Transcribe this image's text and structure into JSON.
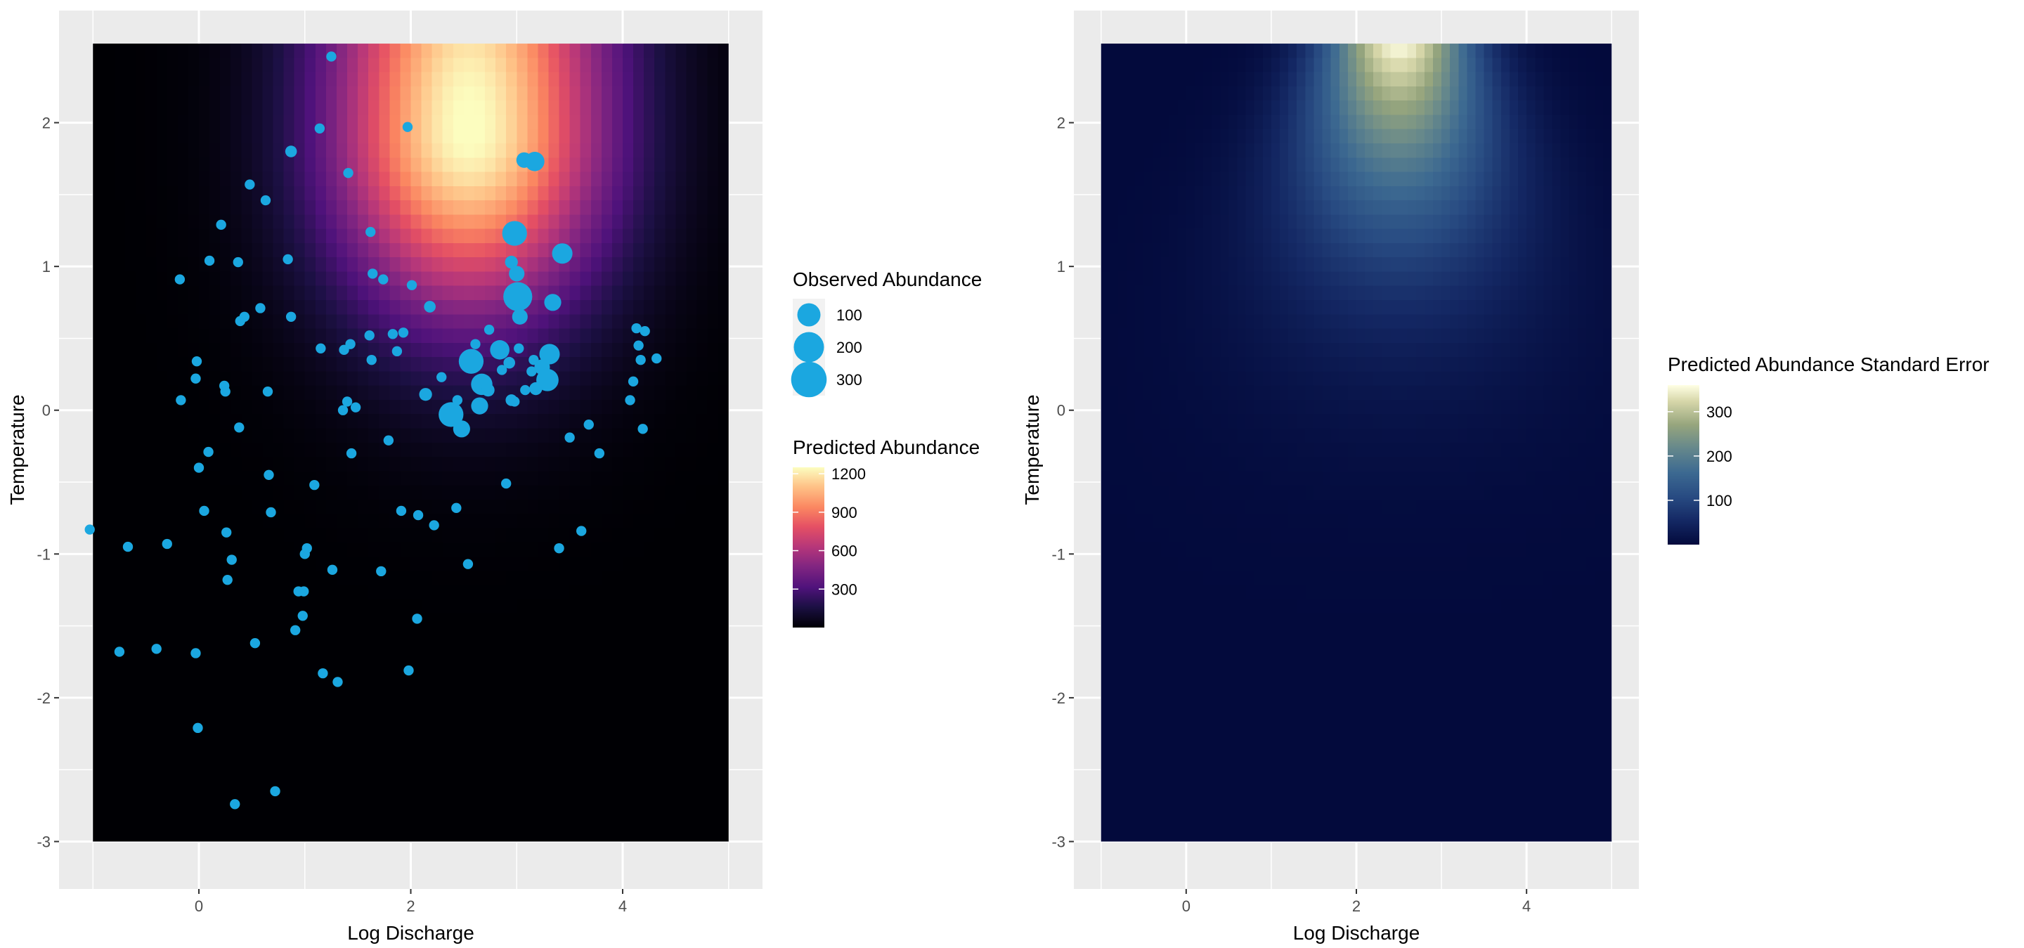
{
  "chart_data": [
    {
      "type": "heatmap",
      "title": "",
      "xlabel": "Log Discharge",
      "ylabel": "Temperature",
      "xlim": [
        -1.32,
        5.32
      ],
      "ylim": [
        -3.33,
        2.78
      ],
      "tile_extent": {
        "x": [
          -1,
          5
        ],
        "y": [
          -3,
          2.55
        ]
      },
      "x_ticks": [
        0,
        2,
        4
      ],
      "y_ticks": [
        -3,
        -2,
        -1,
        0,
        1,
        2
      ],
      "grid": true,
      "palette": "magma",
      "fill_legend": {
        "title": "Predicted Abundance",
        "breaks": [
          300,
          600,
          900,
          1200
        ],
        "range": [
          0,
          1250
        ]
      },
      "surface_model": {
        "peak": 1260,
        "center_x": 2.55,
        "center_y": 1.95,
        "sd_x": 0.9,
        "sd_y": 0.9,
        "sd_y_above": 1.6
      },
      "points_series": {
        "name": "Observed Abundance",
        "color": "#1BA7E0",
        "size_legend": {
          "title": "Observed Abundance",
          "breaks": [
            100,
            200,
            300
          ]
        },
        "points": [
          {
            "x": -1.03,
            "y": -0.83,
            "v": 5
          },
          {
            "x": -0.75,
            "y": -1.68,
            "v": 5
          },
          {
            "x": -0.67,
            "y": -0.95,
            "v": 5
          },
          {
            "x": -0.4,
            "y": -1.66,
            "v": 5
          },
          {
            "x": -0.3,
            "y": -0.93,
            "v": 5
          },
          {
            "x": -0.18,
            "y": 0.91,
            "v": 5
          },
          {
            "x": -0.17,
            "y": 0.07,
            "v": 5
          },
          {
            "x": -0.03,
            "y": 0.22,
            "v": 5
          },
          {
            "x": -0.02,
            "y": 0.34,
            "v": 5
          },
          {
            "x": -0.03,
            "y": -1.69,
            "v": 5
          },
          {
            "x": -0.01,
            "y": -2.21,
            "v": 5
          },
          {
            "x": 0.0,
            "y": -0.4,
            "v": 5
          },
          {
            "x": 0.05,
            "y": -0.7,
            "v": 5
          },
          {
            "x": 0.09,
            "y": -0.29,
            "v": 5
          },
          {
            "x": 0.1,
            "y": 1.04,
            "v": 5
          },
          {
            "x": 0.21,
            "y": 1.29,
            "v": 5
          },
          {
            "x": 0.24,
            "y": 0.17,
            "v": 5
          },
          {
            "x": 0.25,
            "y": 0.13,
            "v": 5
          },
          {
            "x": 0.26,
            "y": -0.85,
            "v": 5
          },
          {
            "x": 0.27,
            "y": -1.18,
            "v": 5
          },
          {
            "x": 0.31,
            "y": -1.04,
            "v": 5
          },
          {
            "x": 0.34,
            "y": -2.74,
            "v": 5
          },
          {
            "x": 0.37,
            "y": 1.03,
            "v": 5
          },
          {
            "x": 0.38,
            "y": -0.12,
            "v": 5
          },
          {
            "x": 0.39,
            "y": 0.62,
            "v": 5
          },
          {
            "x": 0.43,
            "y": 0.65,
            "v": 5
          },
          {
            "x": 0.48,
            "y": 1.57,
            "v": 5
          },
          {
            "x": 0.53,
            "y": -1.62,
            "v": 5
          },
          {
            "x": 0.58,
            "y": 0.71,
            "v": 5
          },
          {
            "x": 0.63,
            "y": 1.46,
            "v": 5
          },
          {
            "x": 0.65,
            "y": 0.13,
            "v": 5
          },
          {
            "x": 0.66,
            "y": -0.45,
            "v": 5
          },
          {
            "x": 0.68,
            "y": -0.71,
            "v": 5
          },
          {
            "x": 0.72,
            "y": -2.65,
            "v": 5
          },
          {
            "x": 0.84,
            "y": 1.05,
            "v": 5
          },
          {
            "x": 0.87,
            "y": 0.65,
            "v": 5
          },
          {
            "x": 0.87,
            "y": 1.8,
            "v": 10
          },
          {
            "x": 0.91,
            "y": -1.53,
            "v": 5
          },
          {
            "x": 0.94,
            "y": -1.26,
            "v": 5
          },
          {
            "x": 0.98,
            "y": -1.43,
            "v": 5
          },
          {
            "x": 0.99,
            "y": -1.26,
            "v": 5
          },
          {
            "x": 1.0,
            "y": -1.0,
            "v": 5
          },
          {
            "x": 1.02,
            "y": -0.96,
            "v": 5
          },
          {
            "x": 1.09,
            "y": -0.52,
            "v": 5
          },
          {
            "x": 1.14,
            "y": 1.96,
            "v": 5
          },
          {
            "x": 1.15,
            "y": 0.43,
            "v": 5
          },
          {
            "x": 1.17,
            "y": -1.83,
            "v": 5
          },
          {
            "x": 1.25,
            "y": 2.46,
            "v": 5
          },
          {
            "x": 1.26,
            "y": -1.11,
            "v": 5
          },
          {
            "x": 1.31,
            "y": -1.89,
            "v": 5
          },
          {
            "x": 1.36,
            "y": 0.0,
            "v": 5
          },
          {
            "x": 1.37,
            "y": 0.42,
            "v": 5
          },
          {
            "x": 1.4,
            "y": 0.06,
            "v": 5
          },
          {
            "x": 1.41,
            "y": 1.65,
            "v": 5
          },
          {
            "x": 1.43,
            "y": 0.46,
            "v": 5
          },
          {
            "x": 1.44,
            "y": -0.3,
            "v": 5
          },
          {
            "x": 1.48,
            "y": 0.02,
            "v": 5
          },
          {
            "x": 1.61,
            "y": 0.52,
            "v": 5
          },
          {
            "x": 1.62,
            "y": 1.24,
            "v": 5
          },
          {
            "x": 1.63,
            "y": 0.35,
            "v": 5
          },
          {
            "x": 1.64,
            "y": 0.95,
            "v": 5
          },
          {
            "x": 1.72,
            "y": -1.12,
            "v": 5
          },
          {
            "x": 1.74,
            "y": 0.91,
            "v": 5
          },
          {
            "x": 1.79,
            "y": -0.21,
            "v": 5
          },
          {
            "x": 1.83,
            "y": 0.53,
            "v": 5
          },
          {
            "x": 1.87,
            "y": 0.41,
            "v": 5
          },
          {
            "x": 1.91,
            "y": -0.7,
            "v": 5
          },
          {
            "x": 1.93,
            "y": 0.54,
            "v": 5
          },
          {
            "x": 1.97,
            "y": 1.97,
            "v": 5
          },
          {
            "x": 1.98,
            "y": -1.81,
            "v": 5
          },
          {
            "x": 2.01,
            "y": 0.87,
            "v": 5
          },
          {
            "x": 2.06,
            "y": -1.45,
            "v": 5
          },
          {
            "x": 2.07,
            "y": -0.73,
            "v": 5
          },
          {
            "x": 2.14,
            "y": 0.11,
            "v": 15
          },
          {
            "x": 2.18,
            "y": 0.72,
            "v": 10
          },
          {
            "x": 2.22,
            "y": -0.8,
            "v": 5
          },
          {
            "x": 2.29,
            "y": 0.23,
            "v": 5
          },
          {
            "x": 2.38,
            "y": -0.03,
            "v": 120
          },
          {
            "x": 2.43,
            "y": -0.68,
            "v": 5
          },
          {
            "x": 2.44,
            "y": 0.07,
            "v": 5
          },
          {
            "x": 2.48,
            "y": -0.13,
            "v": 40
          },
          {
            "x": 2.54,
            "y": -1.07,
            "v": 5
          },
          {
            "x": 2.57,
            "y": 0.34,
            "v": 120
          },
          {
            "x": 2.61,
            "y": 0.46,
            "v": 5
          },
          {
            "x": 2.65,
            "y": 0.03,
            "v": 40
          },
          {
            "x": 2.67,
            "y": 0.18,
            "v": 80
          },
          {
            "x": 2.73,
            "y": 0.14,
            "v": 15
          },
          {
            "x": 2.74,
            "y": 0.56,
            "v": 5
          },
          {
            "x": 2.84,
            "y": 0.42,
            "v": 60
          },
          {
            "x": 2.86,
            "y": 0.28,
            "v": 5
          },
          {
            "x": 2.9,
            "y": -0.51,
            "v": 5
          },
          {
            "x": 2.93,
            "y": 0.33,
            "v": 10
          },
          {
            "x": 2.95,
            "y": 1.03,
            "v": 15
          },
          {
            "x": 2.95,
            "y": 0.07,
            "v": 10
          },
          {
            "x": 2.98,
            "y": 0.06,
            "v": 5
          },
          {
            "x": 2.98,
            "y": 1.23,
            "v": 120
          },
          {
            "x": 3.0,
            "y": 0.95,
            "v": 30
          },
          {
            "x": 3.01,
            "y": 0.79,
            "v": 180
          },
          {
            "x": 3.02,
            "y": 0.43,
            "v": 5
          },
          {
            "x": 3.03,
            "y": 0.65,
            "v": 30
          },
          {
            "x": 3.07,
            "y": 1.74,
            "v": 30
          },
          {
            "x": 3.08,
            "y": 0.14,
            "v": 5
          },
          {
            "x": 3.14,
            "y": 0.27,
            "v": 5
          },
          {
            "x": 3.16,
            "y": 0.35,
            "v": 5
          },
          {
            "x": 3.17,
            "y": 1.73,
            "v": 60
          },
          {
            "x": 3.18,
            "y": 0.15,
            "v": 15
          },
          {
            "x": 3.24,
            "y": 0.3,
            "v": 30
          },
          {
            "x": 3.25,
            "y": 0.2,
            "v": 5
          },
          {
            "x": 3.29,
            "y": 0.21,
            "v": 90
          },
          {
            "x": 3.31,
            "y": 0.39,
            "v": 70
          },
          {
            "x": 3.34,
            "y": 0.75,
            "v": 40
          },
          {
            "x": 3.4,
            "y": -0.96,
            "v": 5
          },
          {
            "x": 3.43,
            "y": 1.09,
            "v": 70
          },
          {
            "x": 3.5,
            "y": -0.19,
            "v": 5
          },
          {
            "x": 3.61,
            "y": -0.84,
            "v": 5
          },
          {
            "x": 3.68,
            "y": -0.1,
            "v": 5
          },
          {
            "x": 3.78,
            "y": -0.3,
            "v": 5
          },
          {
            "x": 4.07,
            "y": 0.07,
            "v": 5
          },
          {
            "x": 4.1,
            "y": 0.2,
            "v": 5
          },
          {
            "x": 4.13,
            "y": 0.57,
            "v": 5
          },
          {
            "x": 4.15,
            "y": 0.45,
            "v": 5
          },
          {
            "x": 4.17,
            "y": 0.35,
            "v": 5
          },
          {
            "x": 4.19,
            "y": -0.13,
            "v": 5
          },
          {
            "x": 4.21,
            "y": 0.55,
            "v": 5
          },
          {
            "x": 4.32,
            "y": 0.36,
            "v": 5
          }
        ]
      }
    },
    {
      "type": "heatmap",
      "title": "",
      "xlabel": "Log Discharge",
      "ylabel": "Temperature",
      "xlim": [
        -1.32,
        5.32
      ],
      "ylim": [
        -3.33,
        2.78
      ],
      "tile_extent": {
        "x": [
          -1,
          5
        ],
        "y": [
          -3,
          2.55
        ]
      },
      "x_ticks": [
        0,
        2,
        4
      ],
      "y_ticks": [
        -3,
        -2,
        -1,
        0,
        1,
        2
      ],
      "grid": true,
      "palette": "viridis-like dark navy to cream",
      "fill_legend": {
        "title": "Predicted Abundance Standard Error",
        "breaks": [
          100,
          200,
          300
        ],
        "range": [
          0,
          360
        ]
      },
      "surface_model": {
        "peak": 360,
        "center_x": 2.5,
        "center_y": 2.55,
        "sd_x": 0.6,
        "sd_y": 1.25,
        "sd_x_growth": 0.35
      }
    }
  ]
}
